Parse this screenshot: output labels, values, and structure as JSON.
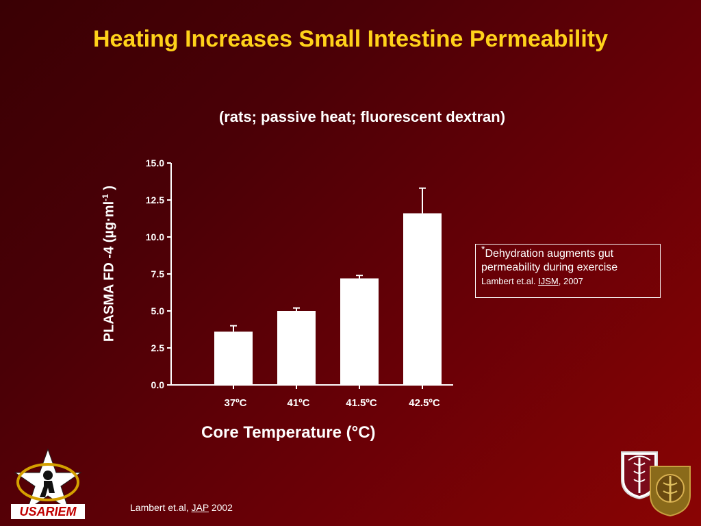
{
  "slide": {
    "title": "Heating Increases Small Intestine Permeability",
    "subtitle": "(rats; passive heat;  fluorescent dextran)",
    "note": {
      "star": "*",
      "line1": "Dehydration augments gut permeability during exercise",
      "ref_prefix": "Lambert et.al.",
      "ref_journal": "IJSM",
      "ref_suffix": ", 2007"
    },
    "credit": {
      "prefix": "Lambert et.al,",
      "journal": "JAP",
      "year": "2002"
    },
    "logo_text": "USARIEM"
  },
  "chart_data": {
    "type": "bar",
    "title": "",
    "ylabel_main": "PLASMA FD -4 (µg·ml",
    "ylabel_sup": "-1",
    "ylabel_end": " )",
    "xlabel": "Core Temperature (°C)",
    "categories": [
      "37ºC",
      "41ºC",
      "41.5ºC",
      "42.5ºC"
    ],
    "values": [
      3.6,
      5.0,
      7.2,
      11.6
    ],
    "errors": [
      0.4,
      0.2,
      0.2,
      1.7
    ],
    "ylim": [
      0,
      15
    ],
    "yticks": [
      "0.0",
      "2.5",
      "5.0",
      "7.5",
      "10.0",
      "12.5",
      "15.0"
    ],
    "grid": false,
    "bar_color": "#ffffff"
  }
}
